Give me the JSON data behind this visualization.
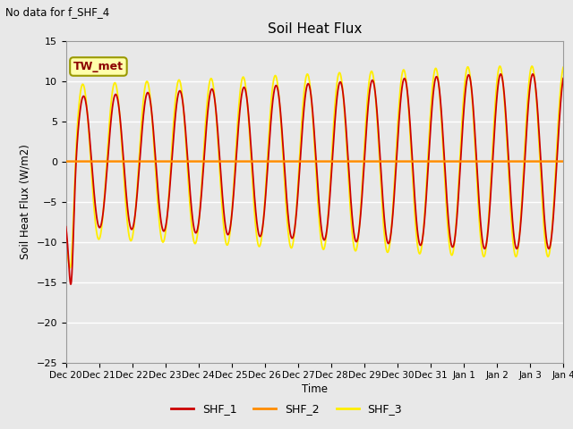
{
  "title": "Soil Heat Flux",
  "subtitle": "No data for f_SHF_4",
  "ylabel": "Soil Heat Flux (W/m2)",
  "xlabel": "Time",
  "annotation": "TW_met",
  "background_color": "#e8e8e8",
  "plot_bg_color": "#e8e8e8",
  "ylim": [
    -25,
    15
  ],
  "yticks": [
    -25,
    -20,
    -15,
    -10,
    -5,
    0,
    5,
    10,
    15
  ],
  "xtick_labels": [
    "Dec 20",
    "Dec 21",
    "Dec 22",
    "Dec 23",
    "Dec 24",
    "Dec 25",
    "Dec 26",
    "Dec 27",
    "Dec 28",
    "Dec 29",
    "Dec 30",
    "Dec 31",
    "Jan 1",
    "Jan 2",
    "Jan 3",
    "Jan 4"
  ],
  "colors": {
    "SHF_1": "#cc0000",
    "SHF_2": "#ff8c00",
    "SHF_3": "#ffee00"
  },
  "legend": [
    {
      "label": "SHF_1",
      "color": "#cc0000"
    },
    {
      "label": "SHF_2",
      "color": "#ff8c00"
    },
    {
      "label": "SHF_3",
      "color": "#ffee00"
    }
  ],
  "n_days": 15.5,
  "n_points": 2000
}
